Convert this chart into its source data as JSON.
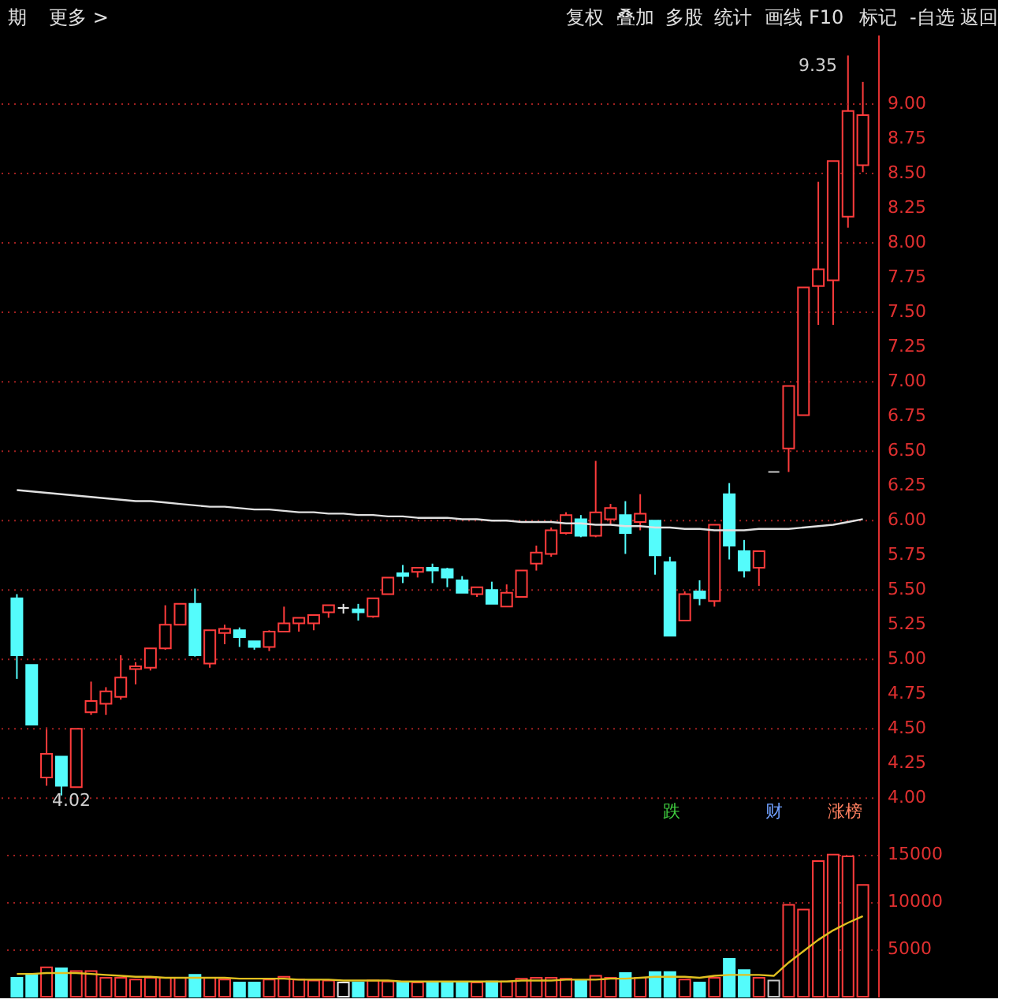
{
  "chart_data": [
    {
      "type": "other",
      "annotations": [
        "期",
        "更多 >",
        "复权",
        "叠加",
        "多股",
        "统计",
        "画线",
        "F10",
        "标记",
        "-自选",
        "返回"
      ]
    },
    {
      "type": "candlestick",
      "categories": [
        null,
        null,
        null,
        null,
        null,
        null,
        null,
        null,
        null,
        null,
        null,
        null,
        null,
        null,
        null,
        null,
        null,
        null,
        null,
        null,
        null,
        null,
        null,
        null,
        null,
        null,
        null,
        null,
        null,
        null,
        null,
        null,
        null,
        null,
        null,
        null,
        null,
        null,
        null,
        null,
        null,
        null,
        null,
        null,
        null,
        null,
        null,
        null,
        null,
        null,
        null,
        null,
        null,
        null,
        null,
        null,
        null,
        null
      ],
      "ohlc": [
        [
          5.44,
          5.47,
          4.86,
          5.03
        ],
        [
          4.96,
          4.96,
          4.53,
          4.53
        ],
        [
          4.15,
          4.51,
          4.09,
          4.32
        ],
        [
          4.3,
          4.3,
          4.02,
          4.09
        ],
        [
          4.08,
          4.5,
          4.08,
          4.5
        ],
        [
          4.62,
          4.84,
          4.6,
          4.7
        ],
        [
          4.68,
          4.8,
          4.6,
          4.77
        ],
        [
          4.73,
          5.03,
          4.71,
          4.87
        ],
        [
          4.93,
          4.98,
          4.82,
          4.95
        ],
        [
          4.94,
          5.08,
          4.92,
          5.08
        ],
        [
          5.08,
          5.39,
          5.07,
          5.25
        ],
        [
          5.25,
          5.4,
          5.25,
          5.4
        ],
        [
          5.4,
          5.51,
          5.02,
          5.03
        ],
        [
          4.97,
          5.21,
          4.94,
          5.21
        ],
        [
          5.19,
          5.25,
          5.11,
          5.22
        ],
        [
          5.21,
          5.23,
          5.09,
          5.16
        ],
        [
          5.13,
          5.13,
          5.07,
          5.09
        ],
        [
          5.09,
          5.21,
          5.06,
          5.2
        ],
        [
          5.2,
          5.38,
          5.2,
          5.26
        ],
        [
          5.26,
          5.3,
          5.2,
          5.3
        ],
        [
          5.26,
          5.32,
          5.21,
          5.32
        ],
        [
          5.34,
          5.39,
          5.3,
          5.39
        ],
        [
          5.37,
          5.4,
          5.33,
          5.37
        ],
        [
          5.36,
          5.4,
          5.28,
          5.34
        ],
        [
          5.31,
          5.44,
          5.3,
          5.44
        ],
        [
          5.47,
          5.59,
          5.47,
          5.59
        ],
        [
          5.62,
          5.68,
          5.55,
          5.6
        ],
        [
          5.63,
          5.66,
          5.59,
          5.66
        ],
        [
          5.66,
          5.69,
          5.55,
          5.64
        ],
        [
          5.65,
          5.66,
          5.52,
          5.59
        ],
        [
          5.57,
          5.6,
          5.48,
          5.48
        ],
        [
          5.47,
          5.52,
          5.45,
          5.52
        ],
        [
          5.5,
          5.56,
          5.4,
          5.4
        ],
        [
          5.38,
          5.54,
          5.38,
          5.48
        ],
        [
          5.45,
          5.64,
          5.45,
          5.64
        ],
        [
          5.69,
          5.82,
          5.64,
          5.77
        ],
        [
          5.76,
          5.95,
          5.74,
          5.93
        ],
        [
          5.91,
          6.06,
          5.9,
          6.04
        ],
        [
          6.01,
          6.04,
          5.88,
          5.89
        ],
        [
          5.89,
          6.43,
          5.88,
          6.06
        ],
        [
          6.01,
          6.12,
          5.97,
          6.09
        ],
        [
          6.04,
          6.14,
          5.76,
          5.91
        ],
        [
          5.99,
          6.19,
          5.93,
          6.05
        ],
        [
          6.0,
          6.0,
          5.61,
          5.75
        ],
        [
          5.7,
          5.74,
          5.17,
          5.17
        ],
        [
          5.28,
          5.49,
          5.28,
          5.47
        ],
        [
          5.49,
          5.57,
          5.39,
          5.44
        ],
        [
          5.42,
          5.97,
          5.38,
          5.97
        ],
        [
          6.19,
          6.27,
          5.72,
          5.82
        ],
        [
          5.78,
          5.86,
          5.59,
          5.64
        ],
        [
          5.66,
          5.78,
          5.53,
          5.78
        ],
        [
          6.35,
          6.35,
          6.35,
          6.35
        ],
        [
          6.52,
          6.97,
          6.35,
          6.97
        ],
        [
          6.76,
          7.68,
          6.76,
          7.68
        ],
        [
          7.69,
          8.44,
          7.41,
          7.81
        ],
        [
          7.73,
          8.59,
          7.41,
          8.59
        ],
        [
          8.19,
          9.35,
          8.11,
          8.95
        ],
        [
          8.56,
          9.16,
          8.51,
          8.92
        ]
      ],
      "colors": [
        "#54fcfc",
        "#54fcfc",
        "#ff3c3c",
        "#54fcfc",
        "#ff3c3c",
        "#ff3c3c",
        "#ff3c3c",
        "#ff3c3c",
        "#ff3c3c",
        "#ff3c3c",
        "#ff3c3c",
        "#ff3c3c",
        "#54fcfc",
        "#ff3c3c",
        "#ff3c3c",
        "#54fcfc",
        "#54fcfc",
        "#ff3c3c",
        "#ff3c3c",
        "#ff3c3c",
        "#ff3c3c",
        "#ff3c3c",
        "#e8e8e8",
        "#54fcfc",
        "#ff3c3c",
        "#ff3c3c",
        "#54fcfc",
        "#ff3c3c",
        "#54fcfc",
        "#54fcfc",
        "#54fcfc",
        "#ff3c3c",
        "#54fcfc",
        "#ff3c3c",
        "#ff3c3c",
        "#ff3c3c",
        "#ff3c3c",
        "#ff3c3c",
        "#54fcfc",
        "#ff3c3c",
        "#ff3c3c",
        "#54fcfc",
        "#ff3c3c",
        "#54fcfc",
        "#54fcfc",
        "#ff3c3c",
        "#54fcfc",
        "#ff3c3c",
        "#54fcfc",
        "#54fcfc",
        "#ff3c3c",
        "#c8c8c8",
        "#ff3c3c",
        "#ff3c3c",
        "#ff3c3c",
        "#ff3c3c",
        "#ff3c3c",
        "#ff3c3c"
      ],
      "series": [
        {
          "type": "line",
          "color": "#e0e0e0",
          "values": [
            6.22,
            6.21,
            6.2,
            6.19,
            6.18,
            6.17,
            6.16,
            6.15,
            6.14,
            6.14,
            6.13,
            6.12,
            6.11,
            6.1,
            6.1,
            6.09,
            6.08,
            6.08,
            6.07,
            6.06,
            6.06,
            6.05,
            6.05,
            6.04,
            6.04,
            6.03,
            6.03,
            6.02,
            6.02,
            6.02,
            6.01,
            6.01,
            6.0,
            6.0,
            5.99,
            5.99,
            5.99,
            5.98,
            5.98,
            5.97,
            5.97,
            5.96,
            5.96,
            5.95,
            5.95,
            5.94,
            5.94,
            5.93,
            5.93,
            5.93,
            5.94,
            5.94,
            5.94,
            5.95,
            5.96,
            5.97,
            5.99,
            6.01
          ]
        }
      ],
      "ylim": [
        3.82,
        9.5
      ],
      "yticks": [
        {
          "value": 4,
          "label": "4.00"
        },
        {
          "value": 4.25,
          "label": "4.25"
        },
        {
          "value": 4.5,
          "label": "4.50"
        },
        {
          "value": 4.75,
          "label": "4.75"
        },
        {
          "value": 5,
          "label": "5.00"
        },
        {
          "value": 5.25,
          "label": "5.25"
        },
        {
          "value": 5.5,
          "label": "5.50"
        },
        {
          "value": 5.75,
          "label": "5.75"
        },
        {
          "value": 6,
          "label": "6.00"
        },
        {
          "value": 6.25,
          "label": "6.25"
        },
        {
          "value": 6.5,
          "label": "6.50"
        },
        {
          "value": 6.75,
          "label": "6.75"
        },
        {
          "value": 7,
          "label": "7.00"
        },
        {
          "value": 7.25,
          "label": "7.25"
        },
        {
          "value": 7.5,
          "label": "7.50"
        },
        {
          "value": 7.75,
          "label": "7.75"
        },
        {
          "value": 8,
          "label": "8.00"
        },
        {
          "value": 8.25,
          "label": "8.25"
        },
        {
          "value": 8.5,
          "label": "8.50"
        },
        {
          "value": 8.75,
          "label": "8.75"
        },
        {
          "value": 9,
          "label": "9.00"
        }
      ],
      "grid": "y",
      "tick_labels": "y",
      "annotations": [
        "9.35",
        "4.02",
        "跌",
        "财",
        "涨榜"
      ]
    },
    {
      "type": "bar",
      "categories": [
        null,
        null,
        null,
        null,
        null,
        null,
        null,
        null,
        null,
        null,
        null,
        null,
        null,
        null,
        null,
        null,
        null,
        null,
        null,
        null,
        null,
        null,
        null,
        null,
        null,
        null,
        null,
        null,
        null,
        null,
        null,
        null,
        null,
        null,
        null,
        null,
        null,
        null,
        null,
        null,
        null,
        null,
        null,
        null,
        null,
        null,
        null,
        null,
        null,
        null,
        null,
        null,
        null,
        null,
        null,
        null,
        null,
        null
      ],
      "values": [
        2000,
        2300,
        3100,
        3000,
        2700,
        2700,
        2000,
        2000,
        1800,
        2000,
        2000,
        2000,
        2300,
        2000,
        1800,
        1500,
        1500,
        1800,
        2100,
        1800,
        1700,
        1700,
        1500,
        1500,
        1700,
        1600,
        1500,
        1500,
        1500,
        1500,
        1500,
        1500,
        1600,
        1600,
        1900,
        2000,
        2000,
        1900,
        1700,
        2200,
        2000,
        2500,
        2000,
        2600,
        2600,
        1800,
        1500,
        2000,
        4000,
        2800,
        2000,
        1700,
        9700,
        9200,
        14300,
        15000,
        14800,
        11800
      ],
      "colors": [
        "#54fcfc",
        "#54fcfc",
        "#ff3c3c",
        "#54fcfc",
        "#ff3c3c",
        "#ff3c3c",
        "#ff3c3c",
        "#ff3c3c",
        "#ff3c3c",
        "#ff3c3c",
        "#ff3c3c",
        "#ff3c3c",
        "#54fcfc",
        "#ff3c3c",
        "#ff3c3c",
        "#54fcfc",
        "#54fcfc",
        "#ff3c3c",
        "#ff3c3c",
        "#ff3c3c",
        "#ff3c3c",
        "#ff3c3c",
        "#e8e8e8",
        "#54fcfc",
        "#ff3c3c",
        "#ff3c3c",
        "#54fcfc",
        "#ff3c3c",
        "#54fcfc",
        "#54fcfc",
        "#54fcfc",
        "#ff3c3c",
        "#54fcfc",
        "#ff3c3c",
        "#ff3c3c",
        "#ff3c3c",
        "#ff3c3c",
        "#ff3c3c",
        "#54fcfc",
        "#ff3c3c",
        "#ff3c3c",
        "#54fcfc",
        "#ff3c3c",
        "#54fcfc",
        "#54fcfc",
        "#ff3c3c",
        "#54fcfc",
        "#ff3c3c",
        "#54fcfc",
        "#54fcfc",
        "#ff3c3c",
        "#c8c8c8",
        "#ff3c3c",
        "#ff3c3c",
        "#ff3c3c",
        "#ff3c3c",
        "#ff3c3c",
        "#ff3c3c"
      ],
      "series": [
        {
          "type": "line",
          "color": "#e0c020",
          "values": [
            2400,
            2400,
            2500,
            2500,
            2500,
            2400,
            2300,
            2200,
            2100,
            2100,
            2000,
            2000,
            2000,
            2000,
            2000,
            1900,
            1900,
            1900,
            1900,
            1800,
            1800,
            1800,
            1700,
            1700,
            1700,
            1700,
            1600,
            1600,
            1600,
            1600,
            1600,
            1600,
            1600,
            1600,
            1700,
            1700,
            1700,
            1800,
            1800,
            1800,
            1900,
            1900,
            2000,
            2100,
            2100,
            2100,
            2000,
            2200,
            2300,
            2300,
            2300,
            2200,
            3600,
            4800,
            6000,
            7000,
            7800,
            8500
          ]
        }
      ],
      "ylim": [
        0,
        18300
      ],
      "yticks": [
        5000,
        10000,
        15000
      ],
      "grid": "y",
      "tick_labels": "y"
    }
  ]
}
